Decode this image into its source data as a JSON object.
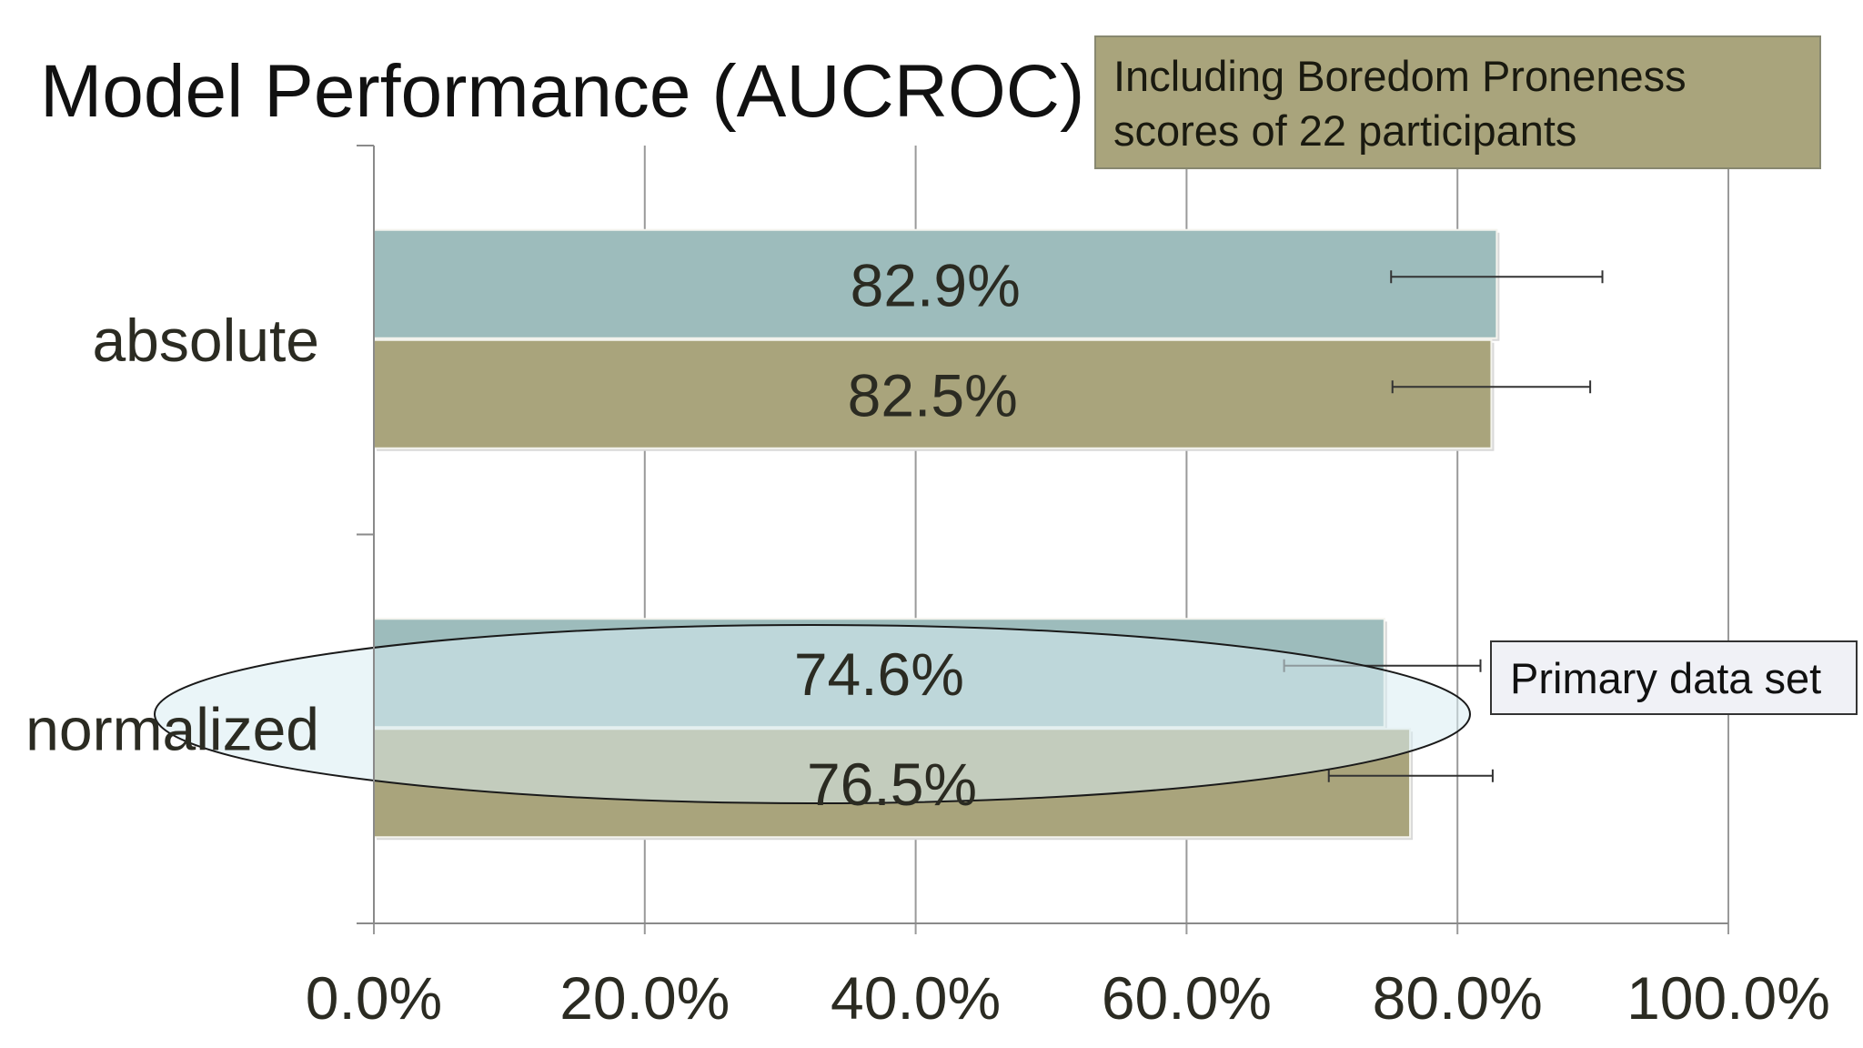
{
  "chart_data": {
    "type": "bar",
    "orientation": "horizontal",
    "title": "Model Performance (AUCROC)",
    "categories": [
      "absolute",
      "normalized"
    ],
    "series": [
      {
        "values": [
          82.9,
          74.6
        ],
        "labels": [
          "82.9%",
          "74.6%"
        ],
        "error_low": [
          75.1,
          67.2
        ],
        "error_high": [
          90.7,
          81.7
        ],
        "color": "#9dbcbc"
      },
      {
        "name": "Including Boredom Proneness scores of 22 participants",
        "values": [
          82.5,
          76.5
        ],
        "labels": [
          "82.5%",
          "76.5%"
        ],
        "error_low": [
          75.2,
          70.5
        ],
        "error_high": [
          89.8,
          82.6
        ],
        "color": "#a9a47c"
      }
    ],
    "xlim": [
      0,
      100
    ],
    "xticks": [
      0,
      20,
      40,
      60,
      80,
      100
    ],
    "xtick_labels": [
      "0.0%",
      "20.0%",
      "40.0%",
      "60.0%",
      "80.0%",
      "100.0%"
    ],
    "grid": true,
    "legend": {
      "lines": [
        "Including Boredom Proneness",
        "scores of 22 participants"
      ],
      "placement": "top-right",
      "color": "#a9a47c"
    },
    "annotation": {
      "text": "Primary data set",
      "highlights": "normalized first-series bar",
      "highlight_color": "#d8ecf2"
    }
  }
}
